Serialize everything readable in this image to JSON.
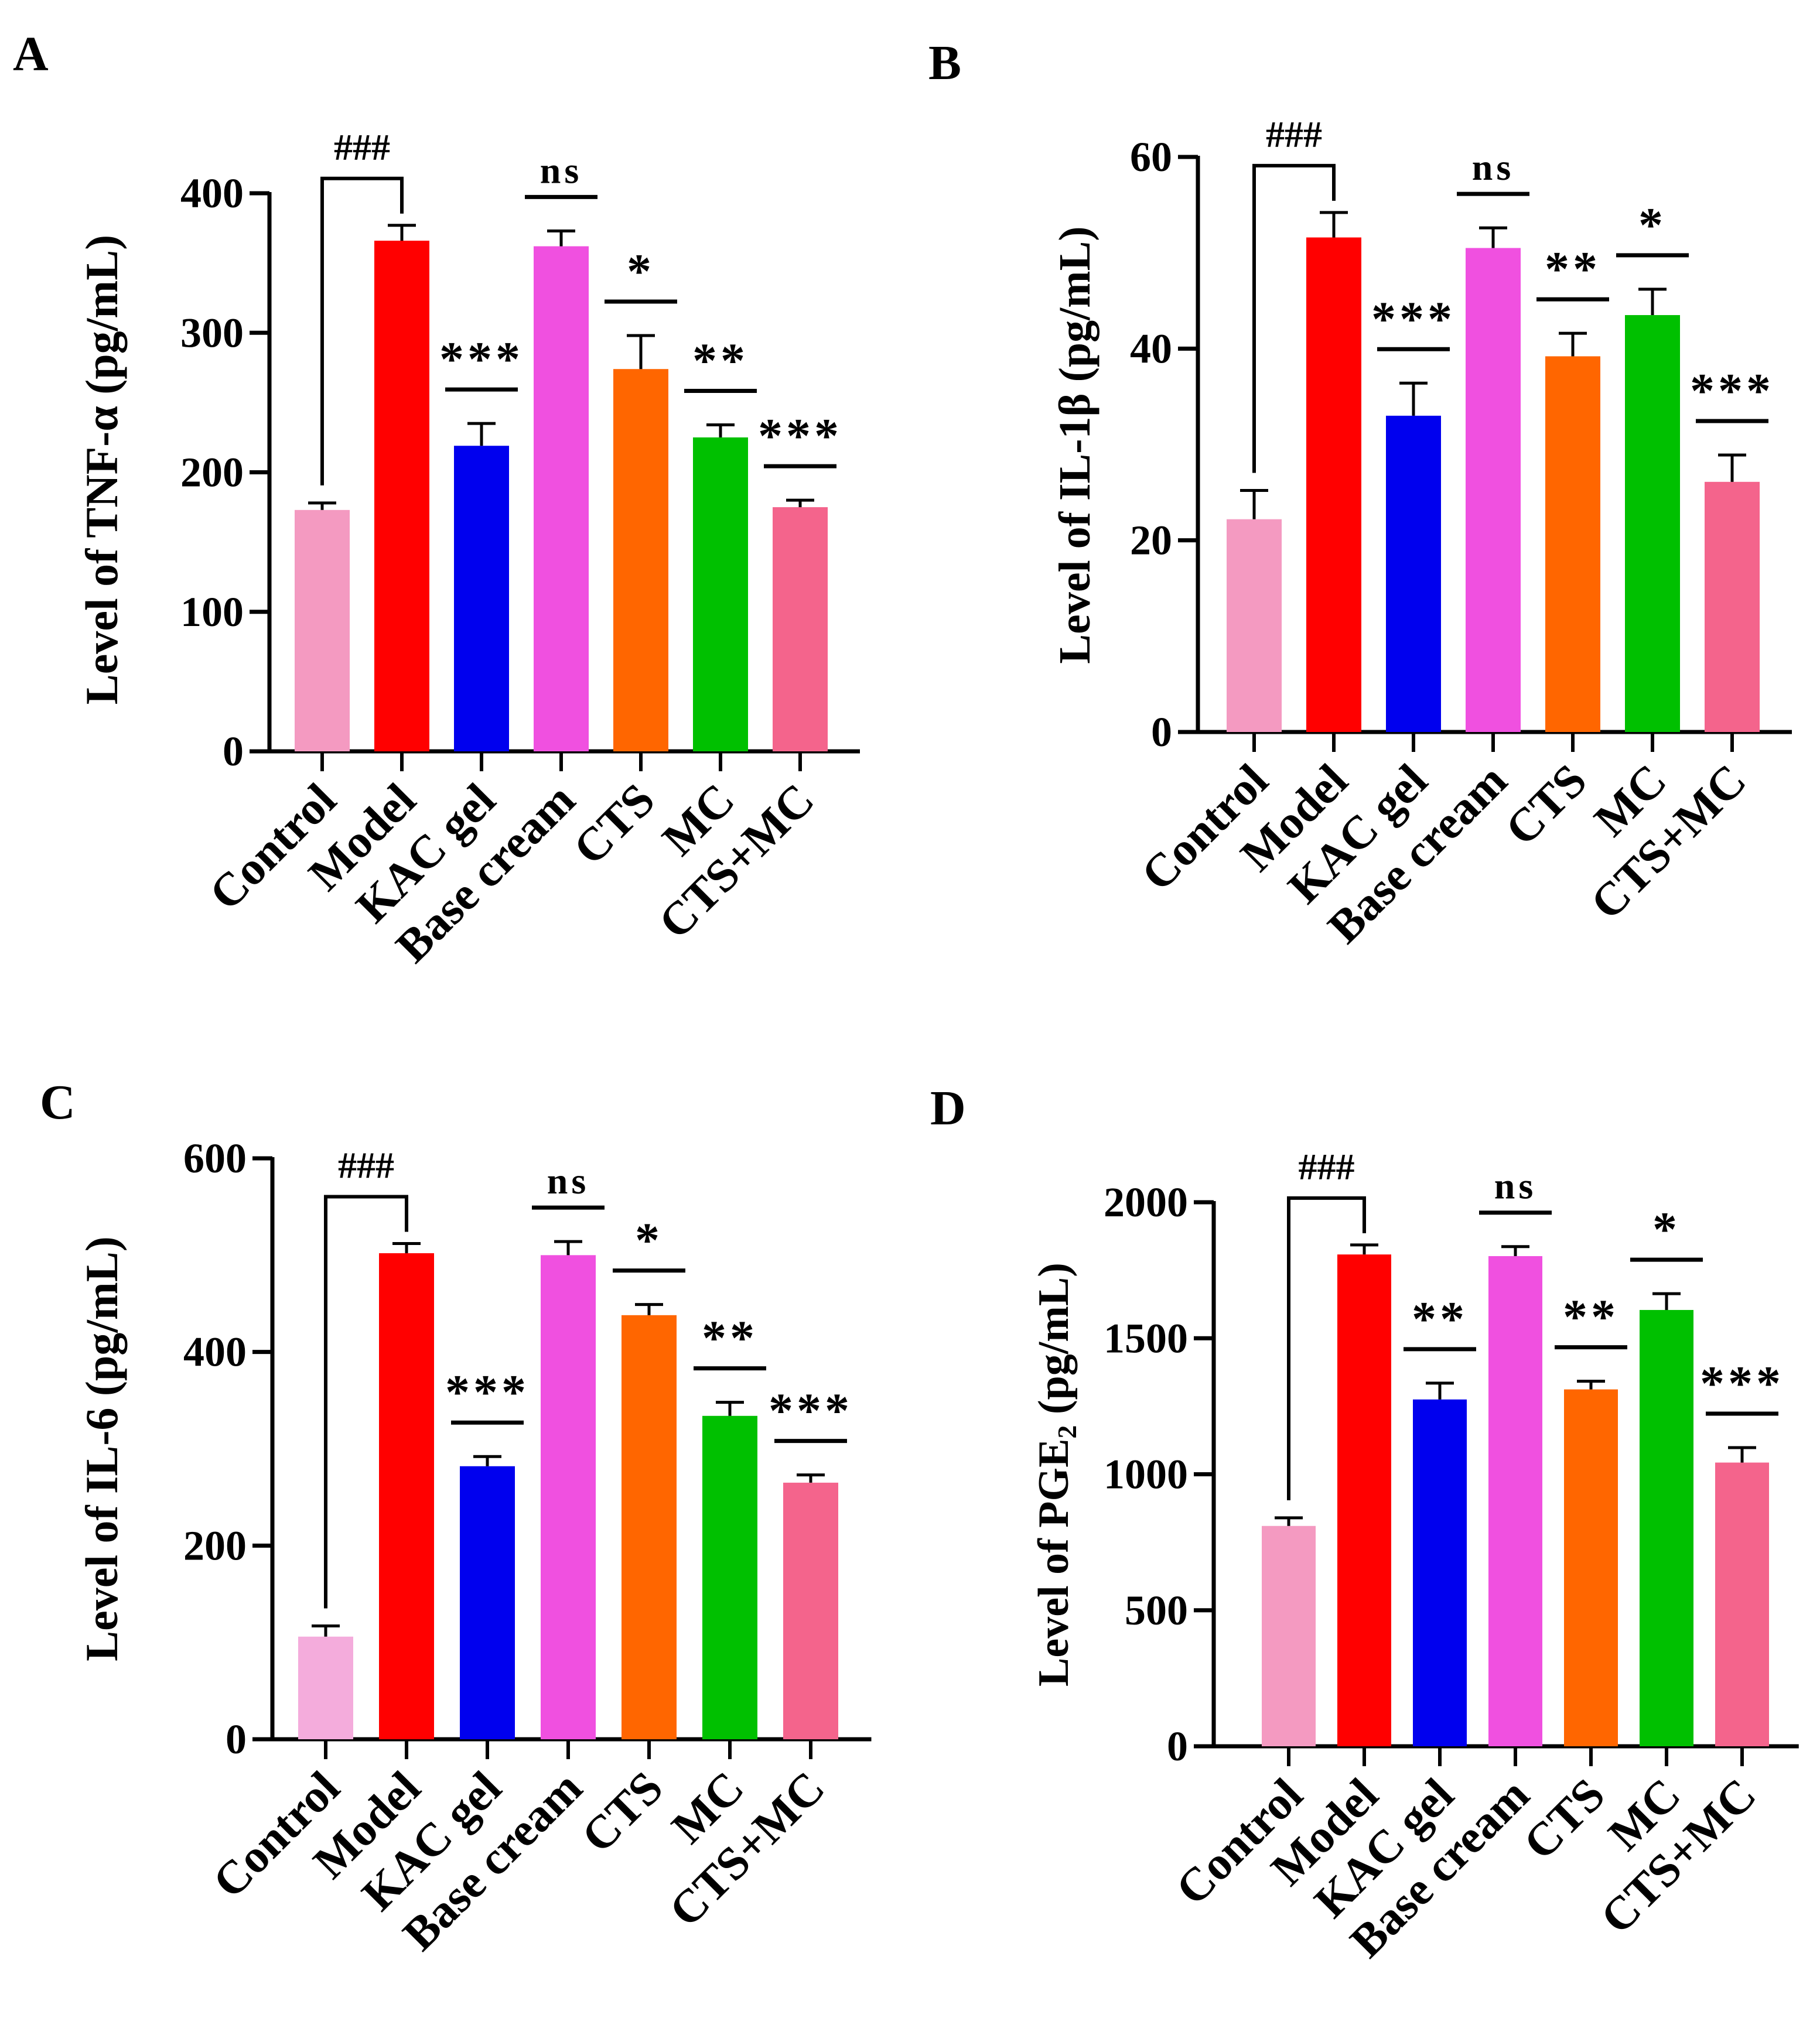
{
  "chart_data": [
    {
      "type": "bar",
      "panel_label": "A",
      "title": "",
      "xlabel": "",
      "ylabel": "Level of TNF-α (pg/mL)",
      "ylabel_sub": "",
      "ylabel_suffix": "",
      "ylim": [
        0,
        400
      ],
      "yticks": [
        0,
        100,
        200,
        300,
        400
      ],
      "categories": [
        "Control",
        "Model",
        "KAC gel",
        "Base cream",
        "CTS",
        "MC",
        "CTS+MC"
      ],
      "values": [
        173,
        366,
        219,
        362,
        274,
        225,
        175
      ],
      "errors": [
        5,
        11,
        16,
        11,
        24,
        9,
        5
      ],
      "colors": [
        "#f49ac1",
        "#ff0000",
        "#0000ee",
        "#f050e0",
        "#ff6600",
        "#00c000",
        "#f4648c"
      ],
      "significance_vs_control": "###",
      "significance": [
        "",
        "",
        "***",
        "ns",
        "*",
        "**",
        "***"
      ]
    },
    {
      "type": "bar",
      "panel_label": "B",
      "title": "",
      "xlabel": "",
      "ylabel": "Level of IL-1β (pg/mL)",
      "ylabel_sub": "",
      "ylabel_suffix": "",
      "ylim": [
        0,
        60
      ],
      "yticks": [
        0,
        20,
        40,
        60
      ],
      "categories": [
        "Control",
        "Model",
        "KAC gel",
        "Base cream",
        "CTS",
        "MC",
        "CTS+MC"
      ],
      "values": [
        22.2,
        51.6,
        33.0,
        50.5,
        39.2,
        43.5,
        26.1
      ],
      "errors": [
        3.0,
        2.6,
        3.4,
        2.1,
        2.4,
        2.7,
        2.8
      ],
      "colors": [
        "#f49ac1",
        "#ff0000",
        "#0000ee",
        "#f050e0",
        "#ff6600",
        "#00c000",
        "#f4648c"
      ],
      "significance_vs_control": "###",
      "significance": [
        "",
        "",
        "***",
        "ns",
        "**",
        "*",
        "***"
      ]
    },
    {
      "type": "bar",
      "panel_label": "C",
      "title": "",
      "xlabel": "",
      "ylabel": "Level of IL-6 (pg/mL)",
      "ylabel_sub": "",
      "ylabel_suffix": "",
      "ylim": [
        0,
        600
      ],
      "yticks": [
        0,
        200,
        400,
        600
      ],
      "categories": [
        "Control",
        "Model",
        "KAC gel",
        "Base cream",
        "CTS",
        "MC",
        "CTS+MC"
      ],
      "values": [
        106,
        502,
        282,
        500,
        438,
        334,
        265
      ],
      "errors": [
        11,
        10,
        10,
        14,
        11,
        14,
        8
      ],
      "colors": [
        "#f4acdc",
        "#ff0000",
        "#0000ee",
        "#f050e0",
        "#ff6600",
        "#00c000",
        "#f4648c"
      ],
      "significance_vs_control": "###",
      "significance": [
        "",
        "",
        "***",
        "ns",
        "*",
        "**",
        "***"
      ]
    },
    {
      "type": "bar",
      "panel_label": "D",
      "title": "",
      "xlabel": "",
      "ylabel": "Level of PGE",
      "ylabel_sub": "2",
      "ylabel_suffix": "  (pg/mL)",
      "ylim": [
        0,
        2000
      ],
      "yticks": [
        0,
        500,
        1000,
        1500,
        2000
      ],
      "categories": [
        "Control",
        "Model",
        "KAC gel",
        "Base cream",
        "CTS",
        "MC",
        "CTS+MC"
      ],
      "values": [
        810,
        1808,
        1275,
        1802,
        1312,
        1604,
        1043
      ],
      "errors": [
        30,
        35,
        60,
        35,
        30,
        60,
        55
      ],
      "colors": [
        "#f49ac1",
        "#ff0000",
        "#0000ee",
        "#f050e0",
        "#ff6600",
        "#00c000",
        "#f4648c"
      ],
      "significance_vs_control": "###",
      "significance": [
        "",
        "",
        "**",
        "ns",
        "**",
        "*",
        "***"
      ]
    }
  ]
}
